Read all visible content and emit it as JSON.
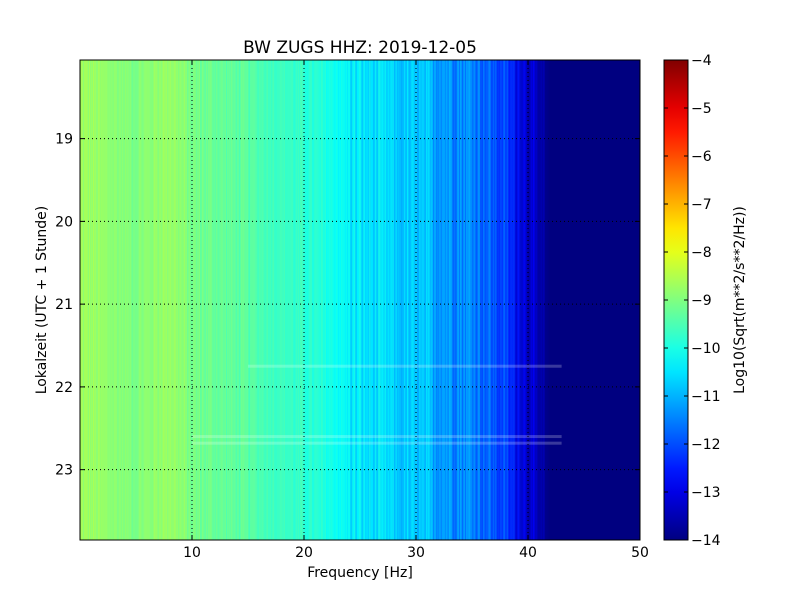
{
  "chart_data": {
    "type": "heatmap",
    "title": "BW ZUGS HHZ: 2019-12-05",
    "xlabel": "Frequency [Hz]",
    "ylabel": "Lokalzeit (UTC + 1 Stunde)",
    "xlim": [
      0,
      50
    ],
    "ylim": [
      18.05,
      23.85
    ],
    "y_inverted": true,
    "x_ticks": [
      10,
      20,
      30,
      40,
      50
    ],
    "y_ticks": [
      19,
      20,
      21,
      22,
      23
    ],
    "grid": true,
    "grid_style": "dotted",
    "colormap": "jet",
    "colorbar": {
      "label": "Log10(Sqrt(m**2/s**2/Hz))",
      "min": -14,
      "max": -4,
      "ticks": [
        -4,
        -5,
        -6,
        -7,
        -8,
        -9,
        -10,
        -11,
        -12,
        -13,
        -14
      ]
    },
    "spectral_profile": {
      "frequency_hz": [
        0,
        5,
        8,
        10,
        15,
        20,
        23,
        25,
        30,
        35,
        38,
        40,
        41,
        42,
        50
      ],
      "log10_amplitude": [
        -8.7,
        -9.0,
        -8.7,
        -9.1,
        -9.4,
        -9.8,
        -10.1,
        -10.5,
        -10.9,
        -11.4,
        -12.2,
        -13.2,
        -13.7,
        -14,
        -14
      ]
    },
    "horizontal_features": [
      {
        "time": 21.75,
        "from_hz": 15,
        "to_hz": 43
      },
      {
        "time": 22.6,
        "from_hz": 10,
        "to_hz": 43
      },
      {
        "time": 22.68,
        "from_hz": 10,
        "to_hz": 43
      }
    ]
  }
}
